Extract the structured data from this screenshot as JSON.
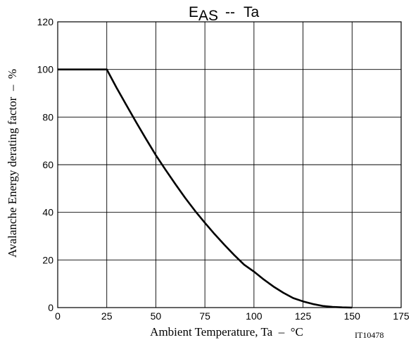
{
  "chart_data": {
    "type": "line",
    "title": {
      "main": "E",
      "subscript": "AS",
      "separator": "--",
      "suffix": "Ta"
    },
    "xlabel": "Ambient Temperature, Ta  –  °C",
    "ylabel": "Avalanche Energy derating factor  –  %",
    "figure_id": "IT10478",
    "xlim": [
      0,
      175
    ],
    "ylim": [
      0,
      120
    ],
    "xticks": [
      0,
      25,
      50,
      75,
      100,
      125,
      150,
      175
    ],
    "yticks": [
      0,
      20,
      40,
      60,
      80,
      100,
      120
    ],
    "grid": true,
    "series": [
      {
        "x": [
          0,
          25,
          30,
          35,
          40,
          45,
          50,
          55,
          60,
          65,
          70,
          75,
          80,
          85,
          90,
          95,
          100,
          105,
          110,
          115,
          120,
          125,
          130,
          135,
          140,
          145,
          150
        ],
        "y": [
          100,
          100,
          92.3,
          85.0,
          77.8,
          70.8,
          64.0,
          57.8,
          51.8,
          46.0,
          40.6,
          35.6,
          30.8,
          26.3,
          22.0,
          18.0,
          15.1,
          11.8,
          8.8,
          6.2,
          4.0,
          2.6,
          1.5,
          0.7,
          0.3,
          0.1,
          0
        ]
      }
    ]
  }
}
